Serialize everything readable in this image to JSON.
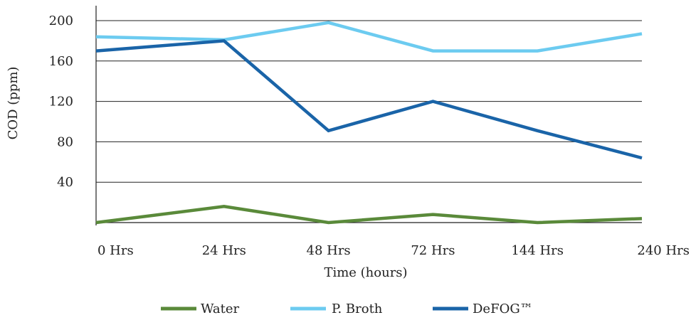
{
  "chart_data": {
    "type": "line",
    "title": "",
    "xlabel": "Time (hours)",
    "ylabel": "COD (ppm)",
    "categories": [
      "0 Hrs",
      "24 Hrs",
      "48 Hrs",
      "72 Hrs",
      "144 Hrs",
      "240 Hrs"
    ],
    "y_ticks": [
      40,
      80,
      120,
      160,
      200
    ],
    "ylim": [
      0,
      210
    ],
    "grid": true,
    "legend_position": "bottom",
    "series": [
      {
        "name": "Water",
        "color": "#5a8a3a",
        "values": [
          0,
          16,
          0,
          8,
          0,
          4
        ]
      },
      {
        "name": "P. Broth",
        "color": "#6ccbf0",
        "values": [
          184,
          181,
          198,
          170,
          170,
          187
        ]
      },
      {
        "name": "DeFOG™",
        "color": "#1a64a8",
        "values": [
          170,
          180,
          91,
          120,
          91,
          64
        ]
      }
    ]
  }
}
